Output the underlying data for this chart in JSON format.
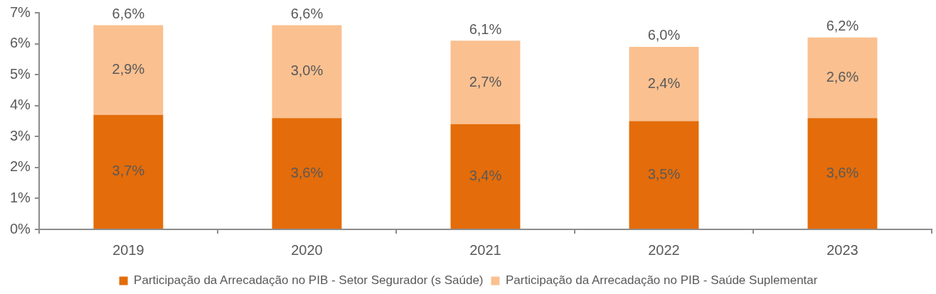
{
  "chart_data": {
    "type": "bar",
    "stacked": true,
    "categories": [
      "2019",
      "2020",
      "2021",
      "2022",
      "2023"
    ],
    "series": [
      {
        "name": "Participação da Arrecadação no PIB - Setor Segurador (s Saúde)",
        "color": "#e46c0a",
        "values": [
          3.7,
          3.6,
          3.4,
          3.5,
          3.6
        ],
        "value_labels": [
          "3,7%",
          "3,6%",
          "3,4%",
          "3,5%",
          "3,6%"
        ]
      },
      {
        "name": "Participação da Arrecadação no PIB - Saúde Suplementar",
        "color": "#fac090",
        "values": [
          2.9,
          3.0,
          2.7,
          2.4,
          2.6
        ],
        "value_labels": [
          "2,9%",
          "3,0%",
          "2,7%",
          "2,4%",
          "2,6%"
        ]
      }
    ],
    "totals": [
      "6,6%",
      "6,6%",
      "6,1%",
      "6,0%",
      "6,2%"
    ],
    "ylim": [
      0,
      7
    ],
    "yticks": [
      {
        "value": 0,
        "label": "0%"
      },
      {
        "value": 1,
        "label": "1%"
      },
      {
        "value": 2,
        "label": "2%"
      },
      {
        "value": 3,
        "label": "3%"
      },
      {
        "value": 4,
        "label": "4%"
      },
      {
        "value": 5,
        "label": "5%"
      },
      {
        "value": 6,
        "label": "6%"
      },
      {
        "value": 7,
        "label": "7%"
      }
    ],
    "legend": "bottom"
  }
}
